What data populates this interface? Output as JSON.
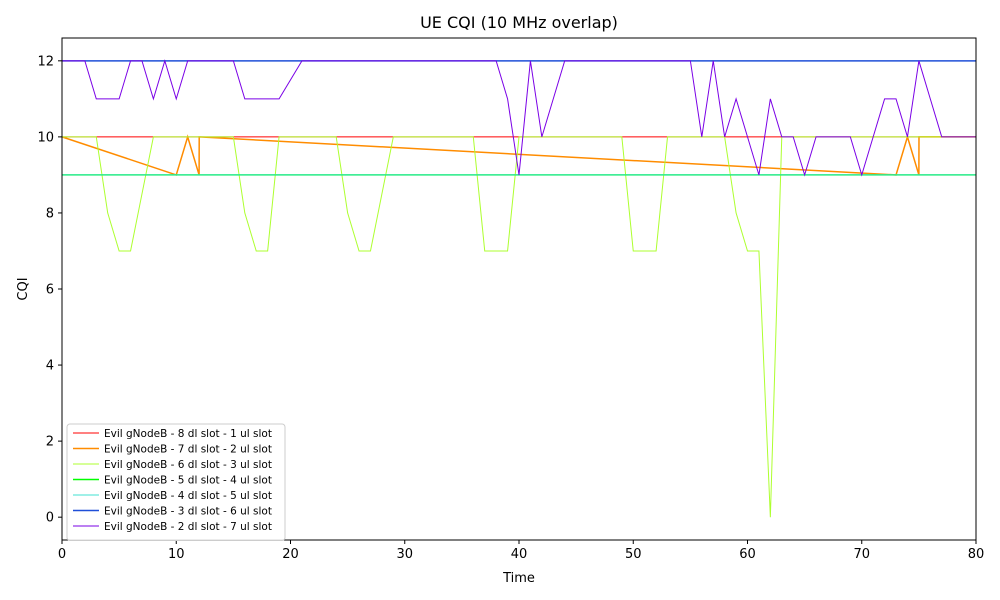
{
  "chart_data": {
    "type": "line",
    "title": "UE CQI (10 MHz overlap)",
    "xlabel": "Time",
    "ylabel": "CQI",
    "xlim": [
      0,
      80
    ],
    "ylim": [
      -0.6,
      12.6
    ],
    "xticks": [
      0,
      10,
      20,
      30,
      40,
      50,
      60,
      70,
      80
    ],
    "yticks": [
      0,
      2,
      4,
      6,
      8,
      10,
      12
    ],
    "grid": false,
    "legend_position": "lower-left",
    "series": [
      {
        "name": "Evil gNodeB - 8 dl slot - 1 ul slot",
        "color": "#ff0000",
        "line_width": 1,
        "x": [
          0,
          80
        ],
        "y": [
          10,
          10
        ]
      },
      {
        "name": "Evil gNodeB - 7 dl slot - 2 ul slot",
        "color": "#ff8c00",
        "line_width": 1.5,
        "x": [
          0,
          10,
          11,
          12,
          12.01,
          73,
          74,
          75,
          75.01,
          80
        ],
        "y": [
          10,
          9,
          10,
          9,
          10,
          9,
          10,
          9,
          10,
          10
        ],
        "note_segments": [
          [
            0,
            10
          ],
          [
            10,
            9
          ],
          [
            11,
            10
          ],
          [
            12,
            9
          ],
          [
            12,
            9
          ],
          [
            73,
            9
          ],
          [
            74,
            10
          ],
          [
            75,
            9
          ],
          [
            75,
            10
          ],
          [
            80,
            10
          ]
        ]
      },
      {
        "name": "Evil gNodeB - 6 dl slot - 3 ul slot",
        "color": "#adff2f",
        "line_width": 1,
        "x": [
          0,
          3,
          4,
          5,
          6,
          7,
          8,
          9,
          10,
          11,
          12,
          13,
          14,
          15,
          16,
          17,
          18,
          19,
          20,
          21,
          22,
          23,
          24,
          25,
          26,
          27,
          28,
          29,
          30,
          31,
          32,
          33,
          34,
          35,
          36,
          37,
          38,
          39,
          40,
          41,
          42,
          43,
          44,
          45,
          46,
          47,
          48,
          49,
          50,
          51,
          52,
          53,
          54,
          55,
          56,
          57,
          58,
          59,
          60,
          61,
          62,
          63,
          64,
          65,
          66,
          67,
          68,
          69,
          70,
          71,
          72,
          73,
          74,
          75,
          76,
          77,
          78,
          79,
          80
        ],
        "y": [
          10,
          10,
          8,
          7,
          7,
          8.5,
          10,
          10,
          10,
          10,
          10,
          10,
          10,
          10,
          8,
          7,
          7,
          10,
          10,
          10,
          10,
          10,
          10,
          8,
          7,
          7,
          8.5,
          10,
          10,
          10,
          10,
          10,
          10,
          10,
          10,
          7,
          7,
          7,
          10,
          10,
          10,
          10,
          10,
          10,
          10,
          10,
          10,
          10,
          7,
          7,
          7,
          10,
          10,
          10,
          10,
          10,
          10,
          8,
          7,
          7,
          0,
          10,
          10,
          10,
          10,
          10,
          10,
          10,
          10,
          10,
          10,
          10,
          10,
          10,
          10,
          10,
          10,
          10,
          10
        ]
      },
      {
        "name": "Evil gNodeB - 5 dl slot - 4 ul slot",
        "color": "#00ff00",
        "line_width": 1.5,
        "x": [
          0,
          80
        ],
        "y": [
          9,
          9
        ]
      },
      {
        "name": "Evil gNodeB - 4 dl slot - 5 ul slot",
        "color": "#40e0d0",
        "line_width": 1,
        "x": [
          0,
          80
        ],
        "y": [
          9,
          9
        ]
      },
      {
        "name": "Evil gNodeB - 3 dl slot - 6 ul slot",
        "color": "#1f4fd8",
        "line_width": 1.5,
        "x": [
          0,
          80
        ],
        "y": [
          12,
          12
        ]
      },
      {
        "name": "Evil gNodeB - 2 dl slot - 7 ul slot",
        "color": "#7a00e6",
        "line_width": 1,
        "x": [
          0,
          2,
          3,
          4,
          5,
          6,
          7,
          8,
          9,
          10,
          11,
          12,
          13,
          14,
          15,
          16,
          17,
          18,
          19,
          20,
          21,
          22,
          23,
          24,
          25,
          26,
          27,
          28,
          29,
          30,
          31,
          32,
          33,
          34,
          35,
          36,
          37,
          38,
          39,
          40,
          41,
          42,
          43,
          44,
          45,
          46,
          47,
          48,
          49,
          50,
          51,
          52,
          53,
          54,
          55,
          56,
          57,
          58,
          59,
          60,
          61,
          62,
          63,
          64,
          65,
          66,
          67,
          68,
          69,
          70,
          71,
          72,
          73,
          74,
          75,
          76,
          77,
          78,
          79,
          80
        ],
        "y": [
          12,
          12,
          11,
          11,
          11,
          12,
          12,
          11,
          12,
          11,
          12,
          12,
          12,
          12,
          12,
          11,
          11,
          11,
          11,
          11.5,
          12,
          12,
          12,
          12,
          12,
          12,
          12,
          12,
          12,
          12,
          12,
          12,
          12,
          12,
          12,
          12,
          12,
          12,
          11,
          9,
          12,
          10,
          11,
          12,
          12,
          12,
          12,
          12,
          12,
          12,
          12,
          12,
          12,
          12,
          12,
          10,
          12,
          10,
          11,
          10,
          9,
          11,
          10,
          10,
          9,
          10,
          10,
          10,
          10,
          9,
          10,
          11,
          11,
          10,
          12,
          11,
          10,
          10,
          10,
          10
        ]
      }
    ]
  }
}
